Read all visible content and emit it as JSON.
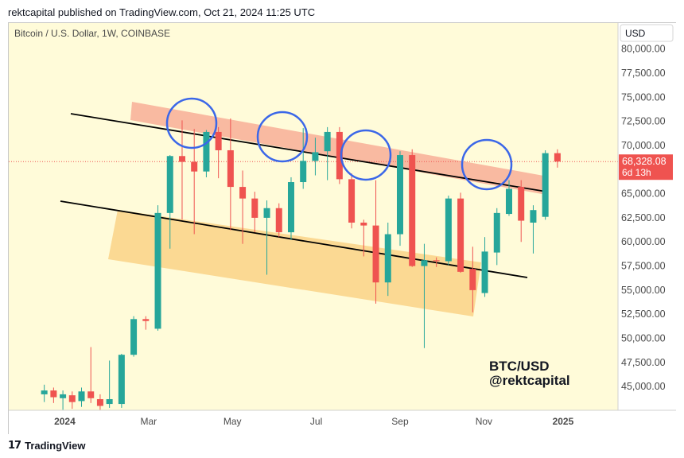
{
  "header": {
    "published": "rektcapital published on TradingView.com, Oct 21, 2024 11:25 UTC"
  },
  "chart_data": {
    "type": "candlestick",
    "title": "Bitcoin / U.S. Dollar, 1W, COINBASE",
    "currency_label": "USD",
    "y_ticks": [
      "80,000.00",
      "77,500.00",
      "75,000.00",
      "72,500.00",
      "70,000.00",
      "67,500.00",
      "65,000.00",
      "62,500.00",
      "60,000.00",
      "57,500.00",
      "55,000.00",
      "52,500.00",
      "50,000.00",
      "47,500.00",
      "45,000.00"
    ],
    "y_tick_values": [
      80000,
      77500,
      75000,
      72500,
      70000,
      67500,
      65000,
      62500,
      60000,
      57500,
      55000,
      52500,
      50000,
      47500,
      45000
    ],
    "ylim": [
      42500,
      81200
    ],
    "x_labels": [
      "2024",
      "Mar",
      "May",
      "Jul",
      "Sep",
      "Nov",
      "2025"
    ],
    "x_label_weeks": [
      3,
      12,
      21,
      30,
      39,
      48,
      56.5
    ],
    "last_price": "68,328.08",
    "countdown": "6d 13h",
    "colors": {
      "up": "#26a69a",
      "down": "#ef5350",
      "background": "#fffbd9",
      "circle": "#3b67e8",
      "resistance_zone": "#f8b39a",
      "support_zone": "#fbd58b"
    },
    "candles": [
      {
        "w": 0.8,
        "o": 44200,
        "h": 45200,
        "l": 43400,
        "c": 44600
      },
      {
        "w": 1.8,
        "o": 44600,
        "h": 44900,
        "l": 43300,
        "c": 43900
      },
      {
        "w": 2.8,
        "o": 43800,
        "h": 44600,
        "l": 42600,
        "c": 44200
      },
      {
        "w": 3.8,
        "o": 44100,
        "h": 44500,
        "l": 42700,
        "c": 43400
      },
      {
        "w": 4.8,
        "o": 43500,
        "h": 44900,
        "l": 42900,
        "c": 44500
      },
      {
        "w": 5.8,
        "o": 44500,
        "h": 49100,
        "l": 43300,
        "c": 43800
      },
      {
        "w": 6.8,
        "o": 43700,
        "h": 44200,
        "l": 42600,
        "c": 43000
      },
      {
        "w": 7.8,
        "o": 43200,
        "h": 47700,
        "l": 42800,
        "c": 43700
      },
      {
        "w": 9.1,
        "o": 43200,
        "h": 48400,
        "l": 42800,
        "c": 48300
      },
      {
        "w": 10.4,
        "o": 48300,
        "h": 52300,
        "l": 48100,
        "c": 52000
      },
      {
        "w": 11.7,
        "o": 52000,
        "h": 52300,
        "l": 50900,
        "c": 51800
      },
      {
        "w": 13.0,
        "o": 51000,
        "h": 63800,
        "l": 50800,
        "c": 63000
      },
      {
        "w": 14.3,
        "o": 63000,
        "h": 69000,
        "l": 59300,
        "c": 68900
      },
      {
        "w": 15.6,
        "o": 68900,
        "h": 72600,
        "l": 62300,
        "c": 68300
      },
      {
        "w": 16.9,
        "o": 68300,
        "h": 71700,
        "l": 60800,
        "c": 67300
      },
      {
        "w": 18.2,
        "o": 67300,
        "h": 71600,
        "l": 66700,
        "c": 71400
      },
      {
        "w": 19.5,
        "o": 71400,
        "h": 71900,
        "l": 66600,
        "c": 69500
      },
      {
        "w": 20.8,
        "o": 69500,
        "h": 72800,
        "l": 61200,
        "c": 65700
      },
      {
        "w": 22.1,
        "o": 65700,
        "h": 67400,
        "l": 59800,
        "c": 64500
      },
      {
        "w": 23.4,
        "o": 64500,
        "h": 65200,
        "l": 61000,
        "c": 62500
      },
      {
        "w": 24.7,
        "o": 62500,
        "h": 64300,
        "l": 56600,
        "c": 63500
      },
      {
        "w": 26.0,
        "o": 63500,
        "h": 64000,
        "l": 60500,
        "c": 61000
      },
      {
        "w": 27.3,
        "o": 61000,
        "h": 66700,
        "l": 60200,
        "c": 66200
      },
      {
        "w": 28.6,
        "o": 66200,
        "h": 71800,
        "l": 65500,
        "c": 68400
      },
      {
        "w": 29.9,
        "o": 68400,
        "h": 70800,
        "l": 66900,
        "c": 69300
      },
      {
        "w": 31.2,
        "o": 69400,
        "h": 71900,
        "l": 66400,
        "c": 71400
      },
      {
        "w": 32.5,
        "o": 71400,
        "h": 71900,
        "l": 66000,
        "c": 66500
      },
      {
        "w": 33.8,
        "o": 66500,
        "h": 67100,
        "l": 61400,
        "c": 62000
      },
      {
        "w": 35.1,
        "o": 62000,
        "h": 62300,
        "l": 58500,
        "c": 61700
      },
      {
        "w": 36.4,
        "o": 61700,
        "h": 66400,
        "l": 53600,
        "c": 55800
      },
      {
        "w": 37.7,
        "o": 55800,
        "h": 62000,
        "l": 54400,
        "c": 60800
      },
      {
        "w": 39.0,
        "o": 60800,
        "h": 69400,
        "l": 59600,
        "c": 69000
      },
      {
        "w": 40.3,
        "o": 69000,
        "h": 69600,
        "l": 57400,
        "c": 57500
      },
      {
        "w": 41.6,
        "o": 57500,
        "h": 59800,
        "l": 49000,
        "c": 58100
      },
      {
        "w": 42.9,
        "o": 58100,
        "h": 58400,
        "l": 57400,
        "c": 58000
      },
      {
        "w": 44.2,
        "o": 58000,
        "h": 64800,
        "l": 57600,
        "c": 64500
      },
      {
        "w": 45.5,
        "o": 64500,
        "h": 65100,
        "l": 56800,
        "c": 56900
      },
      {
        "w": 46.8,
        "o": 57200,
        "h": 59500,
        "l": 52700,
        "c": 55000
      },
      {
        "w": 48.1,
        "o": 54700,
        "h": 60500,
        "l": 54300,
        "c": 59000
      },
      {
        "w": 49.4,
        "o": 58900,
        "h": 63500,
        "l": 57600,
        "c": 63000
      },
      {
        "w": 50.7,
        "o": 62900,
        "h": 66400,
        "l": 62700,
        "c": 65500
      },
      {
        "w": 52.0,
        "o": 65700,
        "h": 66400,
        "l": 60000,
        "c": 62200
      },
      {
        "w": 53.3,
        "o": 62000,
        "h": 63800,
        "l": 58800,
        "c": 63300
      },
      {
        "w": 54.6,
        "o": 62600,
        "h": 69500,
        "l": 62300,
        "c": 69200
      },
      {
        "w": 55.9,
        "o": 69200,
        "h": 69600,
        "l": 67700,
        "c": 68330
      }
    ],
    "annotations": {
      "watermark_line1": "BTC/USD",
      "watermark_line2": "@rektcapital"
    }
  },
  "footer": {
    "brand": "TradingView"
  }
}
